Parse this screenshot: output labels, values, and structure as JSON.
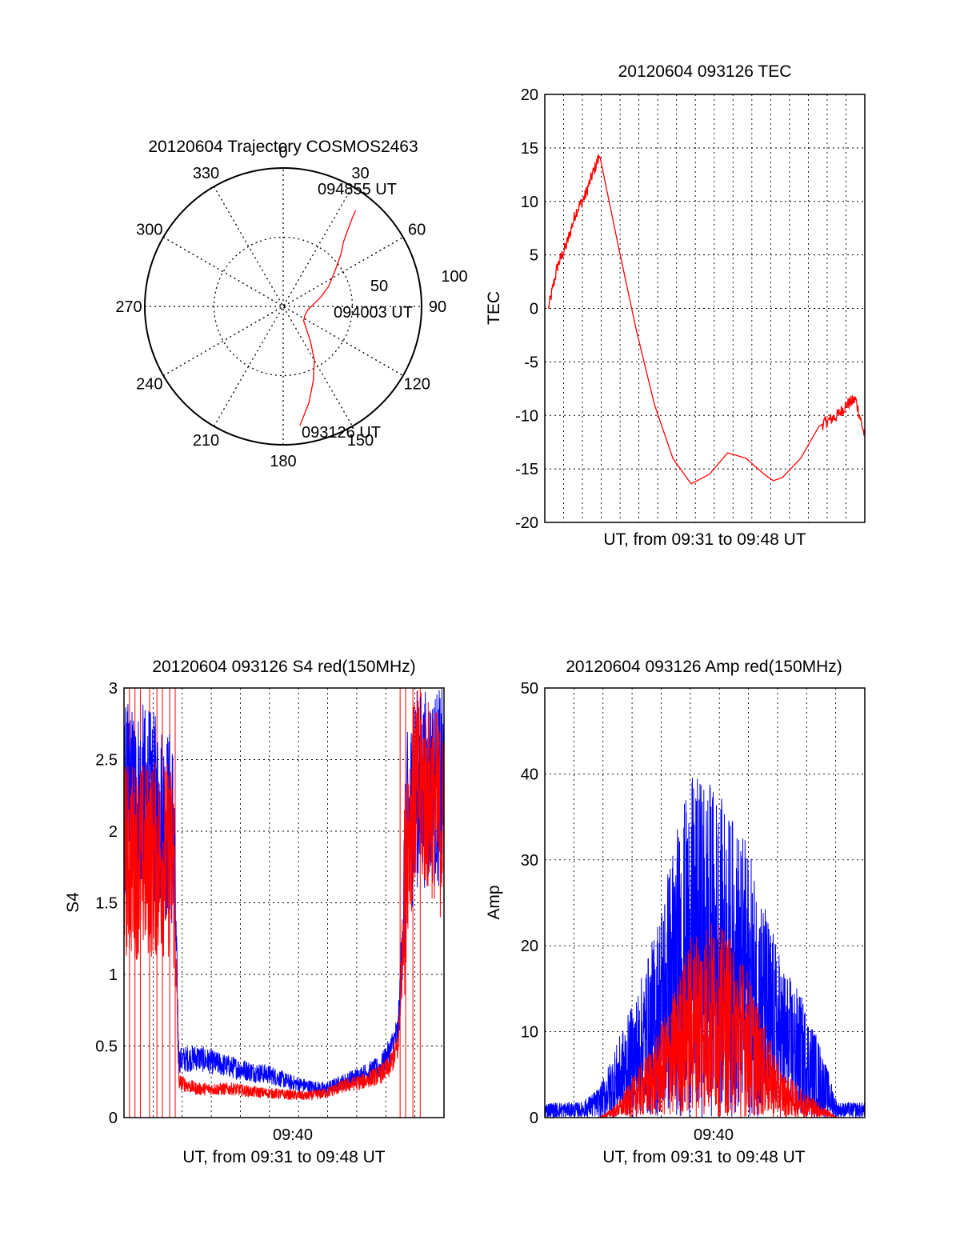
{
  "chart_data": [
    {
      "type": "polar",
      "title": "20120604 Trajectory COSMOS2463",
      "angle_labels": [
        "0",
        "30",
        "60",
        "90",
        "120",
        "150",
        "180",
        "210",
        "240",
        "270",
        "300",
        "330"
      ],
      "radius_labels": [
        "50",
        "100"
      ],
      "rlim": [
        0,
        100
      ],
      "grid": true,
      "series": [
        {
          "color": "#ff0000",
          "points": [
            [
              172,
              87
            ],
            [
              165,
              72
            ],
            [
              158,
              58
            ],
            [
              150,
              45
            ],
            [
              142,
              32
            ],
            [
              135,
              24
            ],
            [
              125,
              18
            ],
            [
              112,
              17
            ],
            [
              98,
              18
            ],
            [
              86,
              22
            ],
            [
              76,
              28
            ],
            [
              66,
              36
            ],
            [
              55,
              46
            ],
            [
              48,
              56
            ],
            [
              43,
              64
            ],
            [
              40,
              73
            ],
            [
              38,
              81
            ],
            [
              37,
              87
            ]
          ]
        }
      ],
      "annotations": [
        "094855 UT",
        "094003 UT",
        "093126 UT"
      ]
    },
    {
      "type": "line",
      "title": "20120604 093126 TEC",
      "ylabel": "TEC",
      "xlabel": "UT, from 09:31 to 09:48 UT",
      "xlim": [
        0,
        17.5
      ],
      "ylim": [
        -20,
        20
      ],
      "yticks": [
        "20",
        "15",
        "10",
        "5",
        "0",
        "-5",
        "-10",
        "-15",
        "-20"
      ],
      "grid": true,
      "series": [
        {
          "color": "#ff0000",
          "x": [
            0.2,
            0.7,
            1.2,
            1.7,
            2.2,
            2.6,
            3.0,
            4.0,
            5.0,
            6.0,
            7.0,
            8.0,
            9.0,
            10.0,
            11.0,
            12.0,
            12.5,
            13.0,
            14.0,
            15.0,
            15.5,
            16.0,
            16.5,
            17.0,
            17.5
          ],
          "y": [
            0,
            4,
            6,
            9,
            10.5,
            12.5,
            14.3,
            6,
            -2,
            -9,
            -14,
            -16.4,
            -15.5,
            -13.5,
            -14,
            -15.5,
            -16.1,
            -15.8,
            -14,
            -11,
            -10.5,
            -10,
            -9,
            -8.5,
            -12
          ]
        }
      ]
    },
    {
      "type": "line",
      "title": "20120604 093126 S4 red(150MHz)",
      "ylabel": "S4",
      "xlabel": "UT, from 09:31 to 09:48 UT",
      "xtick_labels": [
        "09:40"
      ],
      "xlim": [
        0,
        17.5
      ],
      "ylim": [
        0,
        3
      ],
      "yticks": [
        "3",
        "2.5",
        "2",
        "1.5",
        "1",
        "0.5",
        "0"
      ],
      "grid": true,
      "series": [
        {
          "color": "#0000ff",
          "x": [
            0,
            1,
            2,
            2.7,
            3,
            4,
            5,
            6,
            7,
            8,
            9,
            10,
            11,
            12,
            13,
            14,
            14.5,
            15,
            15.5,
            16,
            17,
            17.5
          ],
          "y": [
            2.2,
            2.2,
            2.1,
            2.0,
            0.4,
            0.42,
            0.38,
            0.35,
            0.32,
            0.3,
            0.25,
            0.22,
            0.2,
            0.25,
            0.3,
            0.35,
            0.45,
            0.6,
            2.0,
            2.3,
            2.3,
            2.3
          ]
        },
        {
          "color": "#ff0000",
          "x": [
            0,
            1,
            2,
            2.7,
            3,
            4,
            5,
            6,
            7,
            8,
            9,
            10,
            11,
            12,
            13,
            14,
            14.5,
            15,
            15.5,
            16,
            17,
            17.5
          ],
          "y": [
            1.8,
            1.8,
            1.8,
            1.8,
            0.25,
            0.2,
            0.2,
            0.2,
            0.18,
            0.17,
            0.16,
            0.15,
            0.17,
            0.22,
            0.25,
            0.3,
            0.35,
            0.5,
            2.0,
            2.3,
            2.2,
            2.0
          ]
        }
      ]
    },
    {
      "type": "line",
      "title": "20120604 093126 Amp red(150MHz)",
      "ylabel": "Amp",
      "xlabel": "UT, from 09:31 to 09:48 UT",
      "xtick_labels": [
        "09:40"
      ],
      "xlim": [
        0,
        17.5
      ],
      "ylim": [
        0,
        50
      ],
      "yticks": [
        "50",
        "40",
        "30",
        "20",
        "10",
        "0"
      ],
      "grid": true,
      "series": [
        {
          "color": "#0000ff",
          "x": [
            0,
            2,
            3,
            4,
            5,
            6,
            7,
            8,
            9,
            10,
            11,
            12,
            13,
            14,
            15,
            16,
            17.5
          ],
          "y": [
            1,
            1,
            2,
            5,
            8,
            12,
            18,
            22,
            22,
            20,
            18,
            14,
            10,
            8,
            5,
            1,
            1
          ]
        },
        {
          "color": "#ff0000",
          "x": [
            0,
            2,
            3,
            4,
            5,
            6,
            7,
            8,
            9,
            10,
            11,
            12,
            13,
            14,
            15,
            16,
            17.5
          ],
          "y": [
            0,
            0,
            0,
            1,
            3,
            5,
            8,
            12,
            13,
            12,
            10,
            6,
            3,
            2,
            1,
            0,
            0
          ]
        }
      ]
    }
  ]
}
